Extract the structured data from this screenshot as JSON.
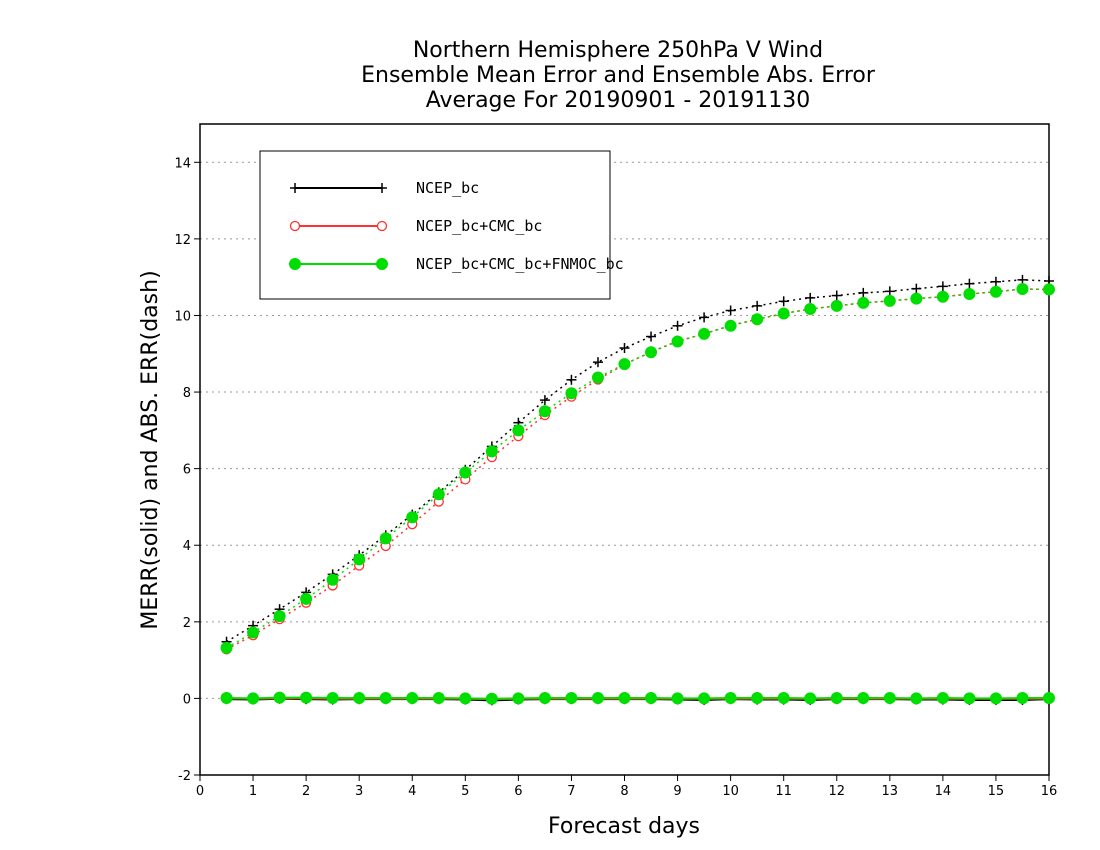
{
  "chart_data": {
    "type": "line",
    "title": [
      "Northern Hemisphere 250hPa V Wind",
      "Ensemble Mean Error and Ensemble Abs. Error",
      "Average For 20190901 - 20191130"
    ],
    "xlabel": "Forecast days",
    "ylabel": "MERR(solid) and ABS. ERR(dash)",
    "xlim": [
      0,
      16
    ],
    "ylim": [
      -2,
      15
    ],
    "xticks": [
      0,
      1,
      2,
      3,
      4,
      5,
      6,
      7,
      8,
      9,
      10,
      11,
      12,
      13,
      14,
      15,
      16
    ],
    "yticks": [
      -2,
      0,
      2,
      4,
      6,
      8,
      10,
      12,
      14
    ],
    "grid": "horizontal dotted",
    "legend_position": "top-left",
    "x": [
      0.5,
      1,
      1.5,
      2,
      2.5,
      3,
      3.5,
      4,
      4.5,
      5,
      5.5,
      6,
      6.5,
      7,
      7.5,
      8,
      8.5,
      9,
      9.5,
      10,
      10.5,
      11,
      11.5,
      12,
      12.5,
      13,
      13.5,
      14,
      14.5,
      15,
      15.5,
      16
    ],
    "series": [
      {
        "name": "NCEP_bc",
        "color": "#000000",
        "marker": "plus",
        "abs_err": [
          1.48,
          1.9,
          2.33,
          2.77,
          3.24,
          3.74,
          4.26,
          4.8,
          5.38,
          5.97,
          6.58,
          7.2,
          7.79,
          8.32,
          8.78,
          9.15,
          9.45,
          9.73,
          9.95,
          10.13,
          10.25,
          10.37,
          10.46,
          10.52,
          10.59,
          10.63,
          10.7,
          10.76,
          10.83,
          10.88,
          10.93,
          10.9
        ],
        "mean_err": [
          -0.02,
          -0.03,
          -0.01,
          -0.02,
          -0.03,
          -0.02,
          -0.02,
          -0.02,
          -0.02,
          -0.03,
          -0.05,
          -0.03,
          -0.02,
          -0.02,
          -0.02,
          -0.02,
          -0.02,
          -0.03,
          -0.04,
          -0.02,
          -0.03,
          -0.03,
          -0.04,
          -0.02,
          -0.02,
          -0.02,
          -0.03,
          -0.03,
          -0.04,
          -0.04,
          -0.04,
          -0.02
        ]
      },
      {
        "name": "NCEP_bc+CMC_bc",
        "color": "#ff3030",
        "marker": "open-circle",
        "abs_err": [
          1.28,
          1.65,
          2.07,
          2.5,
          2.95,
          3.47,
          3.98,
          4.55,
          5.14,
          5.72,
          6.3,
          6.85,
          7.4,
          7.88,
          8.33,
          8.72,
          9.05,
          9.33,
          9.52,
          9.74,
          9.9,
          10.05,
          10.17,
          10.25,
          10.33,
          10.38,
          10.44,
          10.49,
          10.56,
          10.62,
          10.69,
          10.68
        ],
        "mean_err": [
          0.0,
          -0.01,
          0.0,
          0.0,
          -0.01,
          -0.01,
          -0.01,
          -0.01,
          -0.01,
          -0.01,
          -0.02,
          -0.01,
          -0.01,
          -0.01,
          -0.01,
          -0.01,
          -0.01,
          -0.01,
          -0.01,
          -0.01,
          -0.01,
          -0.01,
          -0.01,
          -0.01,
          -0.01,
          -0.01,
          -0.01,
          -0.01,
          -0.01,
          -0.01,
          -0.01,
          -0.01
        ]
      },
      {
        "name": "NCEP_bc+CMC_bc+FNMOC_bc",
        "color": "#00dd00",
        "marker": "filled-circle",
        "abs_err": [
          1.32,
          1.72,
          2.15,
          2.6,
          3.1,
          3.63,
          4.18,
          4.73,
          5.33,
          5.9,
          6.45,
          7.0,
          7.5,
          7.97,
          8.38,
          8.73,
          9.04,
          9.32,
          9.52,
          9.73,
          9.9,
          10.05,
          10.17,
          10.25,
          10.33,
          10.38,
          10.44,
          10.49,
          10.56,
          10.62,
          10.69,
          10.68
        ],
        "mean_err": [
          0.01,
          0.0,
          0.02,
          0.02,
          0.01,
          0.01,
          0.01,
          0.01,
          0.01,
          0.0,
          -0.01,
          0.0,
          0.01,
          0.01,
          0.01,
          0.01,
          0.01,
          0.0,
          0.0,
          0.01,
          0.01,
          0.01,
          0.0,
          0.01,
          0.01,
          0.01,
          0.0,
          0.01,
          0.0,
          0.0,
          0.01,
          0.01
        ]
      }
    ]
  }
}
